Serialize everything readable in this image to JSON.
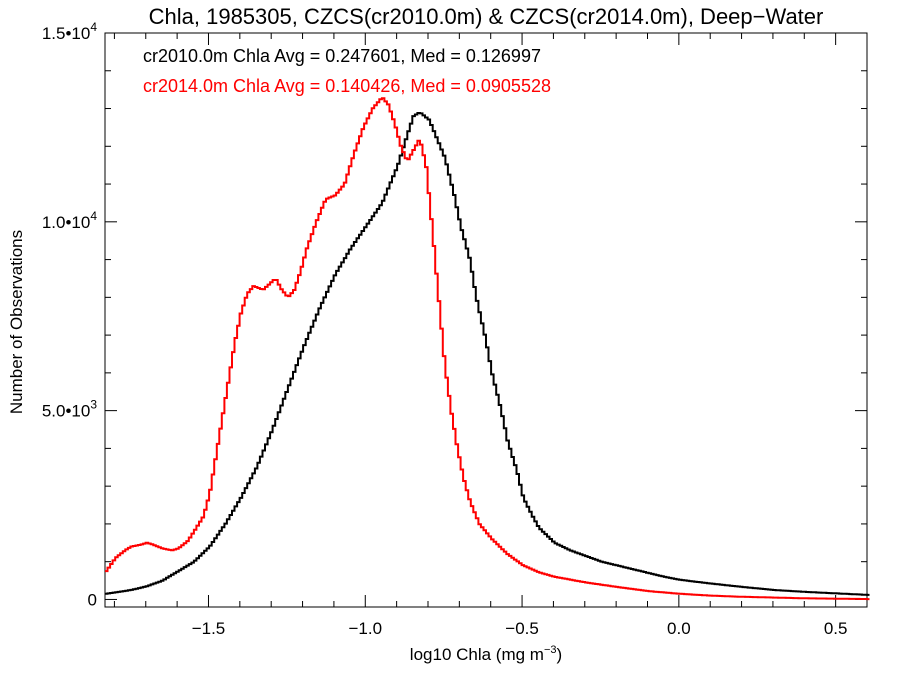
{
  "chart_data": {
    "type": "line",
    "step": true,
    "title": "Chla, 1985305, CZCS(cr2010.0m) & CZCS(cr2014.0m), Deep−Water",
    "xlabel": "log10 Chla (mg m",
    "xlabel_sup": "−3",
    "xlabel_close": ")",
    "ylabel": "Number of Observations",
    "xlim": [
      -1.83,
      0.6
    ],
    "ylim": [
      -200,
      15000
    ],
    "x_ticks": [
      {
        "value": -1.5,
        "label": "−1.5"
      },
      {
        "value": -1.0,
        "label": "−1.0"
      },
      {
        "value": -0.5,
        "label": "−0.5"
      },
      {
        "value": 0.0,
        "label": "0.0"
      },
      {
        "value": 0.5,
        "label": "0.5"
      }
    ],
    "y_ticks": [
      {
        "value": 0,
        "mant": "0",
        "exp": ""
      },
      {
        "value": 5000,
        "mant": "5.0•10",
        "exp": "3"
      },
      {
        "value": 10000,
        "mant": "1.0•10",
        "exp": "4"
      },
      {
        "value": 15000,
        "mant": "1.5•10",
        "exp": "4"
      }
    ],
    "grid": false,
    "annotations": [
      {
        "text": "cr2010.0m Chla Avg = 0.247601, Med = 0.126997",
        "color": "#000000"
      },
      {
        "text": "cr2014.0m Chla Avg = 0.140426, Med = 0.0905528",
        "color": "#ff0000"
      }
    ],
    "series": [
      {
        "color": "#000000",
        "points": [
          [
            -1.83,
            150
          ],
          [
            -1.75,
            250
          ],
          [
            -1.7,
            350
          ],
          [
            -1.65,
            500
          ],
          [
            -1.6,
            750
          ],
          [
            -1.55,
            1000
          ],
          [
            -1.5,
            1400
          ],
          [
            -1.45,
            2000
          ],
          [
            -1.4,
            2700
          ],
          [
            -1.35,
            3500
          ],
          [
            -1.3,
            4500
          ],
          [
            -1.25,
            5600
          ],
          [
            -1.2,
            6700
          ],
          [
            -1.15,
            7700
          ],
          [
            -1.1,
            8600
          ],
          [
            -1.05,
            9300
          ],
          [
            -1.0,
            9900
          ],
          [
            -0.95,
            10500
          ],
          [
            -0.9,
            11500
          ],
          [
            -0.87,
            12300
          ],
          [
            -0.85,
            12800
          ],
          [
            -0.83,
            12900
          ],
          [
            -0.8,
            12700
          ],
          [
            -0.78,
            12300
          ],
          [
            -0.75,
            11700
          ],
          [
            -0.72,
            10700
          ],
          [
            -0.7,
            9900
          ],
          [
            -0.67,
            9000
          ],
          [
            -0.65,
            8000
          ],
          [
            -0.62,
            6900
          ],
          [
            -0.6,
            6000
          ],
          [
            -0.57,
            5000
          ],
          [
            -0.55,
            4200
          ],
          [
            -0.52,
            3400
          ],
          [
            -0.5,
            2700
          ],
          [
            -0.47,
            2200
          ],
          [
            -0.45,
            1900
          ],
          [
            -0.4,
            1500
          ],
          [
            -0.35,
            1300
          ],
          [
            -0.3,
            1150
          ],
          [
            -0.25,
            1000
          ],
          [
            -0.2,
            900
          ],
          [
            -0.15,
            800
          ],
          [
            -0.1,
            700
          ],
          [
            -0.05,
            600
          ],
          [
            0.0,
            520
          ],
          [
            0.1,
            420
          ],
          [
            0.2,
            330
          ],
          [
            0.3,
            250
          ],
          [
            0.4,
            200
          ],
          [
            0.5,
            160
          ],
          [
            0.6,
            120
          ]
        ]
      },
      {
        "color": "#ff0000",
        "points": [
          [
            -1.83,
            750
          ],
          [
            -1.8,
            1100
          ],
          [
            -1.77,
            1300
          ],
          [
            -1.75,
            1400
          ],
          [
            -1.72,
            1450
          ],
          [
            -1.7,
            1500
          ],
          [
            -1.68,
            1450
          ],
          [
            -1.65,
            1350
          ],
          [
            -1.62,
            1300
          ],
          [
            -1.6,
            1350
          ],
          [
            -1.57,
            1550
          ],
          [
            -1.55,
            1800
          ],
          [
            -1.52,
            2200
          ],
          [
            -1.5,
            2800
          ],
          [
            -1.48,
            3800
          ],
          [
            -1.46,
            4800
          ],
          [
            -1.44,
            5800
          ],
          [
            -1.42,
            6800
          ],
          [
            -1.4,
            7600
          ],
          [
            -1.38,
            8100
          ],
          [
            -1.36,
            8300
          ],
          [
            -1.33,
            8200
          ],
          [
            -1.31,
            8350
          ],
          [
            -1.29,
            8500
          ],
          [
            -1.27,
            8200
          ],
          [
            -1.25,
            8000
          ],
          [
            -1.23,
            8200
          ],
          [
            -1.21,
            8700
          ],
          [
            -1.19,
            9300
          ],
          [
            -1.16,
            10000
          ],
          [
            -1.13,
            10600
          ],
          [
            -1.1,
            10700
          ],
          [
            -1.07,
            11000
          ],
          [
            -1.04,
            11800
          ],
          [
            -1.01,
            12500
          ],
          [
            -0.98,
            13000
          ],
          [
            -0.95,
            13300
          ],
          [
            -0.93,
            13100
          ],
          [
            -0.91,
            12600
          ],
          [
            -0.89,
            12000
          ],
          [
            -0.87,
            11600
          ],
          [
            -0.85,
            11900
          ],
          [
            -0.83,
            12200
          ],
          [
            -0.81,
            11500
          ],
          [
            -0.79,
            9800
          ],
          [
            -0.77,
            8000
          ],
          [
            -0.75,
            6200
          ],
          [
            -0.73,
            5000
          ],
          [
            -0.71,
            4000
          ],
          [
            -0.69,
            3200
          ],
          [
            -0.67,
            2600
          ],
          [
            -0.64,
            2000
          ],
          [
            -0.6,
            1600
          ],
          [
            -0.55,
            1200
          ],
          [
            -0.5,
            900
          ],
          [
            -0.45,
            720
          ],
          [
            -0.4,
            600
          ],
          [
            -0.3,
            450
          ],
          [
            -0.2,
            330
          ],
          [
            -0.1,
            220
          ],
          [
            0.0,
            150
          ],
          [
            0.1,
            100
          ],
          [
            0.2,
            70
          ],
          [
            0.3,
            50
          ],
          [
            0.4,
            30
          ],
          [
            0.5,
            20
          ],
          [
            0.6,
            10
          ]
        ]
      }
    ]
  }
}
